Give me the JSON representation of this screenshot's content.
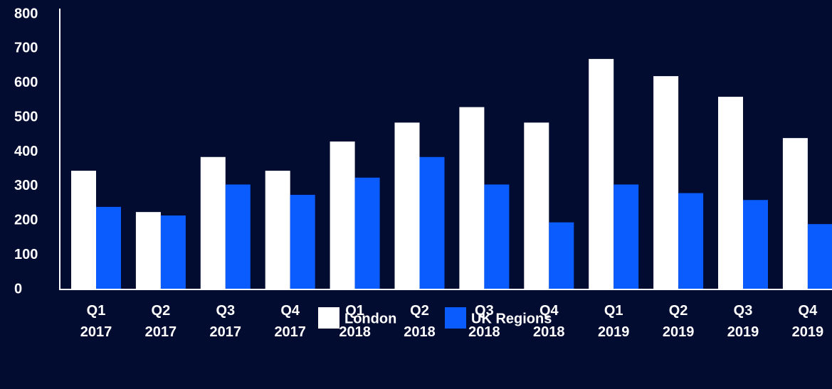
{
  "chart_data": {
    "type": "bar",
    "categories": [
      "Q1 2017",
      "Q2 2017",
      "Q3 2017",
      "Q4 2017",
      "Q1 2018",
      "Q2 2018",
      "Q3 2018",
      "Q4 2018",
      "Q1 2019",
      "Q2 2019",
      "Q3 2019",
      "Q4 2019"
    ],
    "series": [
      {
        "name": "London",
        "color": "#ffffff",
        "values": [
          345,
          225,
          385,
          345,
          430,
          485,
          530,
          485,
          670,
          620,
          560,
          440
        ]
      },
      {
        "name": "UK Regions",
        "color": "#0a5cff",
        "values": [
          240,
          215,
          305,
          275,
          325,
          385,
          305,
          195,
          305,
          280,
          260,
          190
        ]
      }
    ],
    "ylim": [
      0,
      800
    ],
    "yticks": [
      0,
      100,
      200,
      300,
      400,
      500,
      600,
      700,
      800
    ],
    "grid": false,
    "legend": "bottom"
  }
}
